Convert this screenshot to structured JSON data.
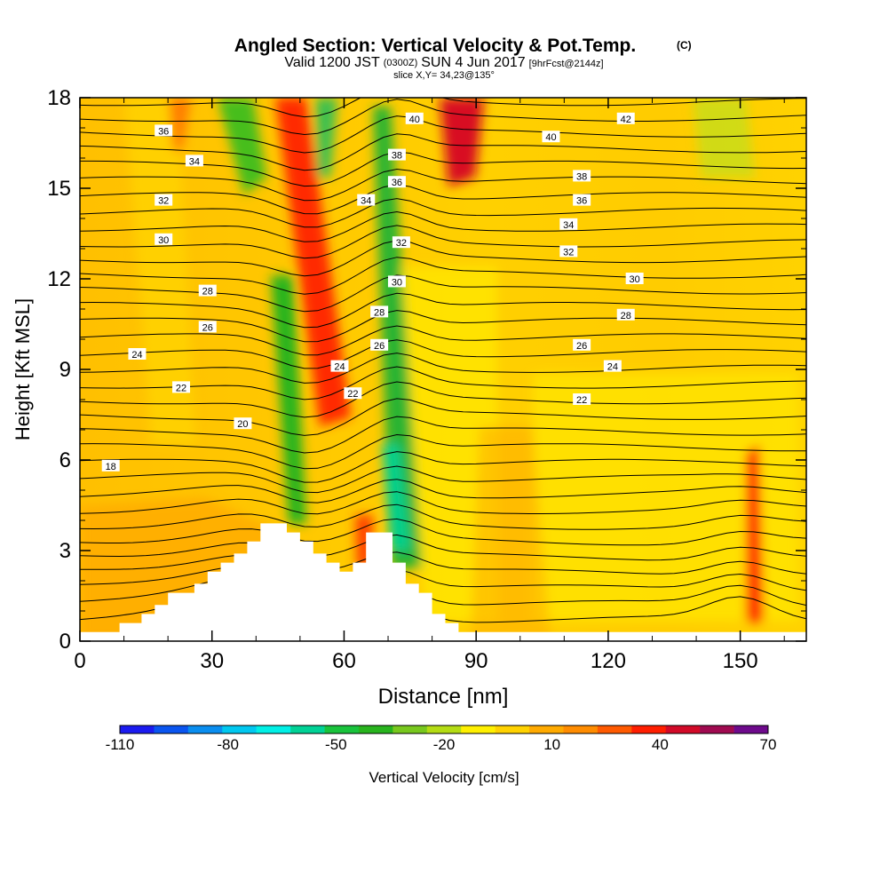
{
  "header": {
    "title": "Angled Section: Vertical Velocity & Pot.Temp.",
    "title_tag": "(C)",
    "line2_a": "Valid 1200 JST",
    "line2_b": "(0300Z)",
    "line2_c": "SUN 4 Jun 2017",
    "line2_d": "[9hrFcst@2144z]",
    "line3": "slice X,Y= 34,23@135°"
  },
  "chart_data": {
    "type": "heatmap",
    "xlabel": "Distance [nm]",
    "ylabel": "Height [Kft MSL]",
    "xlim": [
      0,
      165
    ],
    "ylim": [
      0,
      18
    ],
    "x_ticks": [
      "0",
      "30",
      "60",
      "90",
      "120",
      "150"
    ],
    "y_ticks": [
      "0",
      "3",
      "6",
      "9",
      "12",
      "15",
      "18"
    ],
    "colorbar": {
      "label": "Vertical Velocity [cm/s]",
      "ticks": [
        "-110",
        "-80",
        "-50",
        "-20",
        "10",
        "40",
        "70"
      ],
      "colors": [
        "#1b1bf0",
        "#0a55f0",
        "#0a8ef0",
        "#00c8f0",
        "#00f0e6",
        "#00d296",
        "#19c33c",
        "#28b41e",
        "#78c81e",
        "#b4dc14",
        "#fff000",
        "#ffd200",
        "#ffaa00",
        "#ff8c00",
        "#ff5a00",
        "#ff1e00",
        "#d20a28",
        "#a00a50",
        "#6e0a8c"
      ]
    },
    "terrain": [
      [
        0,
        0.3
      ],
      [
        9,
        0.3
      ],
      [
        9,
        0.6
      ],
      [
        14,
        0.6
      ],
      [
        14,
        0.9
      ],
      [
        17,
        0.9
      ],
      [
        17,
        1.2
      ],
      [
        20,
        1.2
      ],
      [
        20,
        1.6
      ],
      [
        26,
        1.6
      ],
      [
        26,
        1.9
      ],
      [
        29,
        1.9
      ],
      [
        29,
        2.3
      ],
      [
        32,
        2.3
      ],
      [
        32,
        2.6
      ],
      [
        35,
        2.6
      ],
      [
        35,
        2.9
      ],
      [
        38,
        2.9
      ],
      [
        38,
        3.3
      ],
      [
        41,
        3.3
      ],
      [
        41,
        3.9
      ],
      [
        47,
        3.9
      ],
      [
        47,
        3.6
      ],
      [
        50,
        3.6
      ],
      [
        50,
        3.3
      ],
      [
        53,
        3.3
      ],
      [
        53,
        2.9
      ],
      [
        56,
        2.9
      ],
      [
        56,
        2.6
      ],
      [
        59,
        2.6
      ],
      [
        59,
        2.3
      ],
      [
        62,
        2.3
      ],
      [
        62,
        2.6
      ],
      [
        65,
        2.6
      ],
      [
        65,
        3.6
      ],
      [
        71,
        3.6
      ],
      [
        71,
        2.6
      ],
      [
        74,
        2.6
      ],
      [
        74,
        1.9
      ],
      [
        77,
        1.9
      ],
      [
        77,
        1.6
      ],
      [
        80,
        1.6
      ],
      [
        80,
        0.9
      ],
      [
        83,
        0.9
      ],
      [
        83,
        0.6
      ],
      [
        86,
        0.6
      ],
      [
        86,
        0.3
      ],
      [
        165,
        0.3
      ],
      [
        165,
        0
      ],
      [
        0,
        0
      ]
    ],
    "contour_labels": [
      {
        "text": "36",
        "x": 19,
        "y": 16.9
      },
      {
        "text": "34",
        "x": 26,
        "y": 15.9
      },
      {
        "text": "32",
        "x": 19,
        "y": 14.6
      },
      {
        "text": "30",
        "x": 19,
        "y": 13.3
      },
      {
        "text": "28",
        "x": 29,
        "y": 11.6
      },
      {
        "text": "26",
        "x": 29,
        "y": 10.4
      },
      {
        "text": "24",
        "x": 13,
        "y": 9.5
      },
      {
        "text": "22",
        "x": 23,
        "y": 8.4
      },
      {
        "text": "20",
        "x": 37,
        "y": 7.2
      },
      {
        "text": "18",
        "x": 7,
        "y": 5.8
      },
      {
        "text": "40",
        "x": 76,
        "y": 17.3
      },
      {
        "text": "38",
        "x": 72,
        "y": 16.1
      },
      {
        "text": "36",
        "x": 72,
        "y": 15.2
      },
      {
        "text": "34",
        "x": 65,
        "y": 14.6
      },
      {
        "text": "32",
        "x": 73,
        "y": 13.2
      },
      {
        "text": "30",
        "x": 72,
        "y": 11.9
      },
      {
        "text": "28",
        "x": 68,
        "y": 10.9
      },
      {
        "text": "26",
        "x": 68,
        "y": 9.8
      },
      {
        "text": "24",
        "x": 59,
        "y": 9.1
      },
      {
        "text": "22",
        "x": 62,
        "y": 8.2
      },
      {
        "text": "42",
        "x": 124,
        "y": 17.3
      },
      {
        "text": "40",
        "x": 107,
        "y": 16.7
      },
      {
        "text": "38",
        "x": 114,
        "y": 15.4
      },
      {
        "text": "36",
        "x": 114,
        "y": 14.6
      },
      {
        "text": "34",
        "x": 111,
        "y": 13.8
      },
      {
        "text": "32",
        "x": 111,
        "y": 12.9
      },
      {
        "text": "30",
        "x": 126,
        "y": 12.0
      },
      {
        "text": "28",
        "x": 124,
        "y": 10.8
      },
      {
        "text": "26",
        "x": 114,
        "y": 9.8
      },
      {
        "text": "24",
        "x": 121,
        "y": 9.1
      },
      {
        "text": "22",
        "x": 114,
        "y": 8.0
      }
    ]
  }
}
